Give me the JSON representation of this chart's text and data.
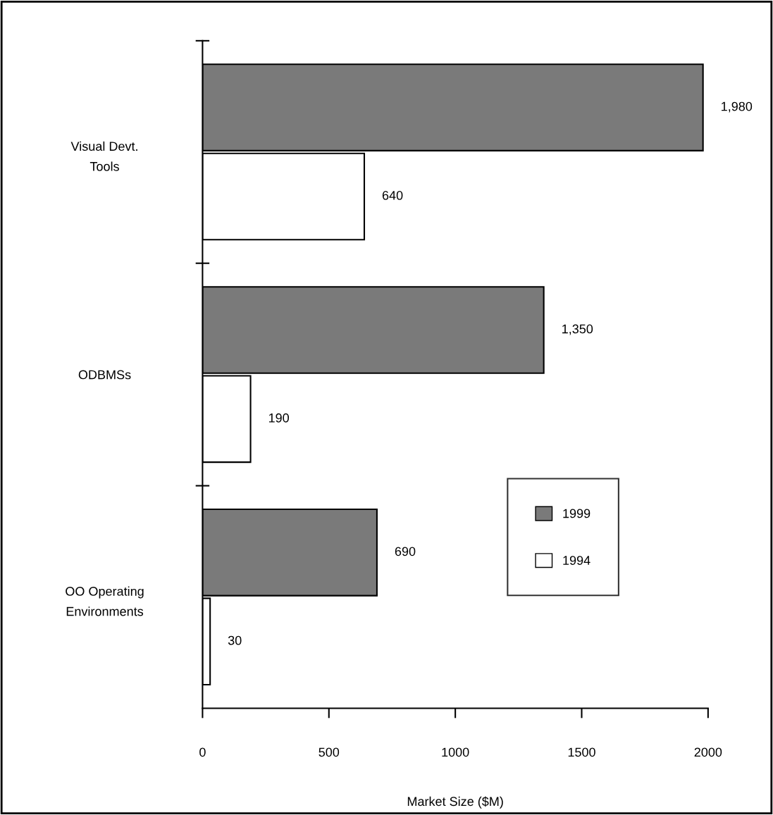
{
  "chart_data": {
    "type": "bar",
    "orientation": "horizontal",
    "xlabel": "Market Size ($M)",
    "categories": [
      "Visual Devt.\nTools",
      "ODBMSs",
      "OO Operating\nEnvironments"
    ],
    "series": [
      {
        "name": "1999",
        "color": "#7a7a7a",
        "values": [
          1980,
          1350,
          690
        ],
        "value_labels": [
          "1,980",
          "1,350",
          "690"
        ]
      },
      {
        "name": "1994",
        "color": "#ffffff",
        "values": [
          640,
          190,
          30
        ],
        "value_labels": [
          "640",
          "190",
          "30"
        ]
      }
    ],
    "xlim": [
      0,
      2000
    ],
    "xticks": [
      0,
      500,
      1000,
      1500,
      2000
    ],
    "grid": false,
    "legend": "right"
  }
}
